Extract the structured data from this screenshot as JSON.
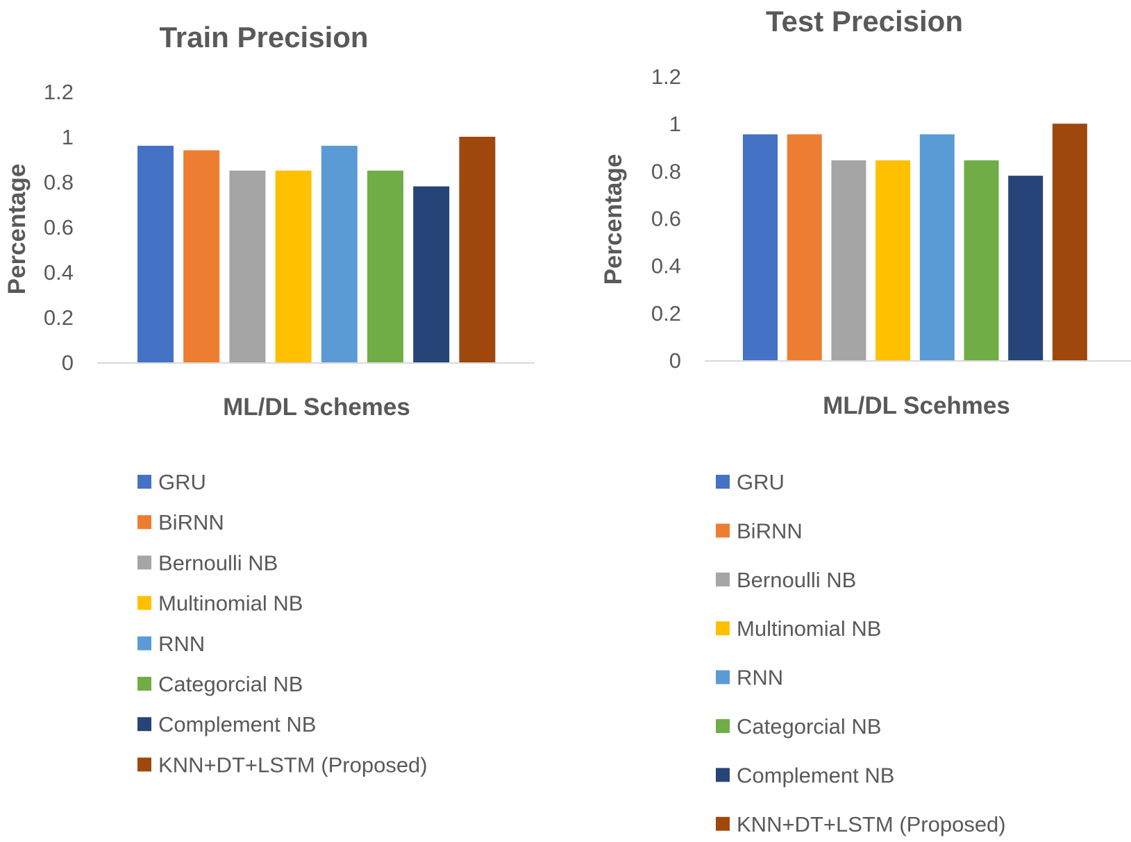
{
  "chart_data": [
    {
      "type": "bar",
      "title": "Train Precision",
      "xlabel": "ML/DL Schemes",
      "ylabel": "Percentage",
      "ylim": [
        0,
        1.2
      ],
      "yticks": [
        "0",
        "0.2",
        "0.4",
        "0.6",
        "0.8",
        "1",
        "1.2"
      ],
      "grid": false,
      "legend_position": "bottom",
      "series": [
        {
          "name": "GRU",
          "value": 0.96,
          "color": "#4472C4"
        },
        {
          "name": "BiRNN",
          "value": 0.94,
          "color": "#ED7D31"
        },
        {
          "name": "Bernoulli NB",
          "value": 0.85,
          "color": "#A5A5A5"
        },
        {
          "name": "Multinomial NB",
          "value": 0.85,
          "color": "#FFC000"
        },
        {
          "name": "RNN",
          "value": 0.96,
          "color": "#5B9BD5"
        },
        {
          "name": "Categorcial NB",
          "value": 0.85,
          "color": "#70AD47"
        },
        {
          "name": "Complement NB",
          "value": 0.78,
          "color": "#264478"
        },
        {
          "name": "KNN+DT+LSTM (Proposed)",
          "value": 1.0,
          "color": "#9E480E"
        }
      ]
    },
    {
      "type": "bar",
      "title": "Test Precision",
      "xlabel": "ML/DL Scehmes",
      "ylabel": "Percentage",
      "ylim": [
        0,
        1.2
      ],
      "yticks": [
        "0",
        "0.2",
        "0.4",
        "0.6",
        "0.8",
        "1",
        "1.2"
      ],
      "grid": false,
      "legend_position": "bottom",
      "series": [
        {
          "name": "GRU",
          "value": 0.955,
          "color": "#4472C4"
        },
        {
          "name": "BiRNN",
          "value": 0.955,
          "color": "#ED7D31"
        },
        {
          "name": "Bernoulli NB",
          "value": 0.845,
          "color": "#A5A5A5"
        },
        {
          "name": "Multinomial NB",
          "value": 0.845,
          "color": "#FFC000"
        },
        {
          "name": "RNN",
          "value": 0.955,
          "color": "#5B9BD5"
        },
        {
          "name": "Categorcial NB",
          "value": 0.845,
          "color": "#70AD47"
        },
        {
          "name": "Complement NB",
          "value": 0.78,
          "color": "#264478"
        },
        {
          "name": "KNN+DT+LSTM (Proposed)",
          "value": 1.0,
          "color": "#9E480E"
        }
      ]
    }
  ]
}
